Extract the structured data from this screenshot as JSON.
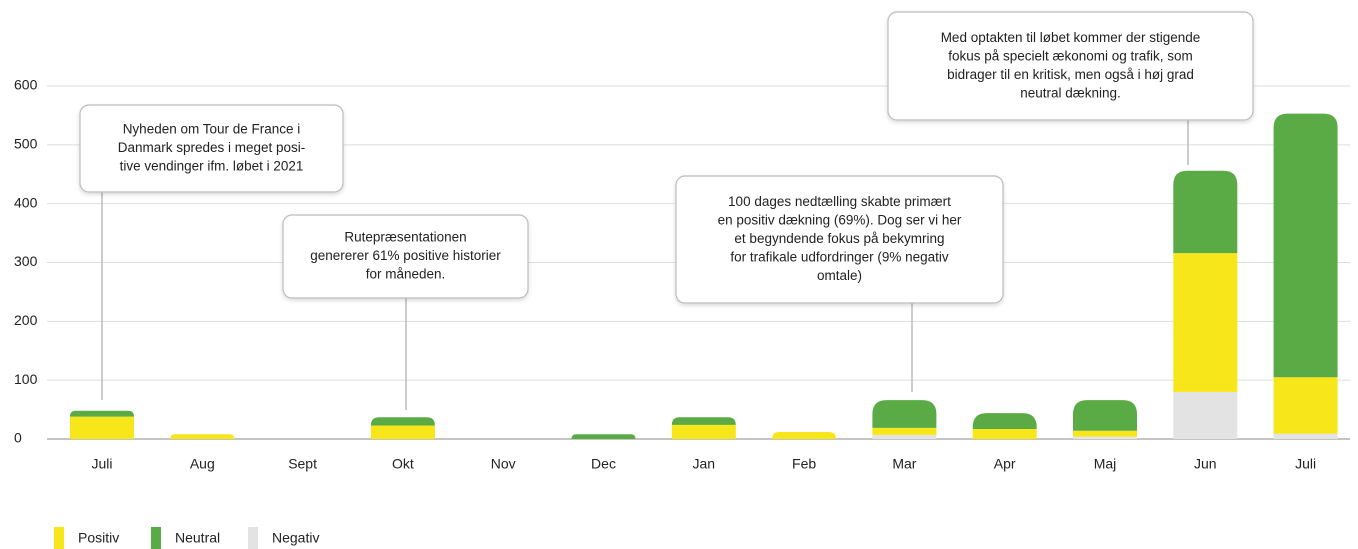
{
  "chart_data": {
    "type": "stacked_bar",
    "categories": [
      "Juli",
      "Aug",
      "Sept",
      "Okt",
      "Nov",
      "Dec",
      "Jan",
      "Feb",
      "Mar",
      "Apr",
      "Maj",
      "Jun",
      "Juli"
    ],
    "series": [
      {
        "name": "Negativ",
        "color": "#e3e3e3",
        "values": [
          0,
          0,
          0,
          0,
          0,
          0,
          0,
          0,
          7,
          0,
          4,
          80,
          9
        ]
      },
      {
        "name": "Positiv",
        "color": "#f7e619",
        "values": [
          38,
          8,
          0,
          23,
          0,
          0,
          24,
          12,
          12,
          17,
          10,
          236,
          96
        ]
      },
      {
        "name": "Neutral",
        "color": "#5aaa46",
        "values": [
          10,
          0,
          0,
          14,
          0,
          8,
          13,
          0,
          47,
          27,
          52,
          140,
          448
        ]
      }
    ],
    "legend_order": [
      "Positiv",
      "Neutral",
      "Negativ"
    ],
    "ylim": [
      0,
      600
    ],
    "yticks": [
      0,
      100,
      200,
      300,
      400,
      500,
      600
    ],
    "grid": true,
    "annotations": [
      [
        "Nyheden om Tour de France i",
        "Danmark spredes i meget posi-",
        "tive vendinger ifm. løbet i 2021"
      ],
      [
        "Rutepræsentationen",
        "genererer 61% positive historier",
        "for måneden."
      ],
      [
        "100 dages nedtælling skabte primært",
        "en positiv dækning (69%). Dog ser vi her",
        "et begyndende fokus på bekymring",
        "for trafikale udfordringer (9% negativ",
        "omtale)"
      ],
      [
        "Med optakten til løbet kommer der stigende",
        "fokus på specielt ækonomi og trafik, som",
        "bidrager til en kritisk, men også i høj grad",
        "neutral dækning."
      ]
    ]
  }
}
